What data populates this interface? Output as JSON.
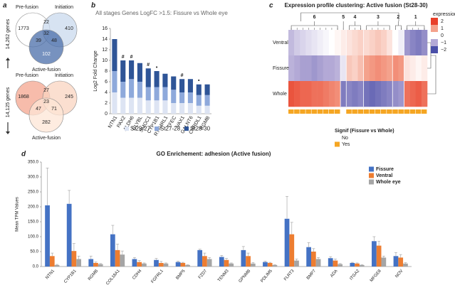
{
  "chart_data": [
    {
      "type": "venn",
      "label": "a",
      "diagrams": [
        {
          "total": "14,262 genes",
          "sets": [
            "Pre-fusion",
            "Initiation",
            "Active-fusion"
          ],
          "colors": [
            "#ffffff",
            "#c9d9ee",
            "#4a6ea9"
          ],
          "counts": [
            1773,
            22,
            410,
            32,
            39,
            48,
            102
          ]
        },
        {
          "total": "14,125 genes",
          "sets": [
            "Pre-fusion",
            "Initiation",
            "Active-fusion"
          ],
          "colors": [
            "#f4a68f",
            "#fad4c0",
            "#fde6d6"
          ],
          "counts": [
            1868,
            27,
            245,
            23,
            47,
            71,
            282
          ]
        }
      ]
    },
    {
      "type": "stacked_bar",
      "label": "b",
      "title": "All stages Genes LogFC >1.5: Fissure vs Whole eye",
      "ylabel": "Log2 Fold Change",
      "categories": [
        "NTN1",
        "PAX2",
        "ALDH6",
        "CLYBL",
        "SMOC1",
        "CYP1B1",
        "RTN4RL1",
        "TFEC",
        "VAX1",
        "GALNT6",
        "CHRDL1",
        "RGMB"
      ],
      "annotations": [
        null,
        "#",
        "#",
        null,
        "#",
        "•",
        null,
        null,
        "#",
        null,
        "•",
        null
      ],
      "series": [
        {
          "name": "St25-27",
          "color": "#dde4f3",
          "values": [
            4,
            3,
            3,
            3,
            2.5,
            2.5,
            2.5,
            2,
            2,
            2,
            1.5,
            1.5
          ]
        },
        {
          "name": "St27-28",
          "color": "#8ea9db",
          "values": [
            4,
            3,
            3.5,
            3,
            2.5,
            2.5,
            2.5,
            2.5,
            2,
            2,
            2,
            2
          ]
        },
        {
          "name": "St28-30",
          "color": "#2f5597",
          "values": [
            6,
            4,
            3.5,
            3.5,
            3.5,
            3,
            2.5,
            2.5,
            2.5,
            2.5,
            2,
            2
          ]
        }
      ],
      "ylim": [
        0,
        16
      ],
      "yticks": [
        0,
        2,
        4,
        6,
        8,
        10,
        12,
        14,
        16
      ],
      "legend": "bottom"
    },
    {
      "type": "heatmap",
      "label": "c",
      "title": "Expression profile clustering: Active fusion (St28-30)",
      "rows": [
        "Ventral",
        "Fissure",
        "Whole"
      ],
      "clusters": [
        {
          "label": "6",
          "columns": 9
        },
        {
          "label": "5",
          "columns": 1
        },
        {
          "label": "4",
          "columns": 3
        },
        {
          "label": "3",
          "columns": 5
        },
        {
          "label": "2",
          "columns": 2
        },
        {
          "label": "1",
          "columns": 4
        }
      ],
      "values": [
        [
          -0.8,
          -0.6,
          -0.5,
          -0.4,
          -0.3,
          -0.2,
          -0.1,
          0,
          0.1,
          0.2,
          0.3,
          0.4,
          0.5,
          0.4,
          0.5,
          0.6,
          0.5,
          0.3,
          0,
          -0.2,
          -1.2,
          -1.4,
          -1.5,
          -1.3
        ],
        [
          -0.9,
          -1,
          -1.1,
          -1.1,
          -1.2,
          -1.1,
          -1,
          -1,
          -0.9,
          -0.3,
          0.6,
          0.5,
          0.7,
          1,
          1.1,
          1.2,
          1.1,
          1,
          1.2,
          1.1,
          0.3,
          0.2,
          0.1,
          0.2
        ],
        [
          1.8,
          1.7,
          1.6,
          1.6,
          1.5,
          1.5,
          1.4,
          1.3,
          1.2,
          -1.5,
          -1.4,
          -1.5,
          -1.4,
          -1.6,
          -1.7,
          -1.6,
          -1.5,
          -1.4,
          -1.3,
          -1.2,
          1.5,
          1.6,
          1.7,
          1.5
        ]
      ],
      "legend_title": "expression",
      "colorscale": [
        {
          "value": 2,
          "label": "2",
          "color": "#e8402a"
        },
        {
          "value": 1,
          "label": "1",
          "color": "#f4a28c"
        },
        {
          "value": 0,
          "label": "0",
          "color": "#ffffff"
        },
        {
          "value": -1,
          "label": "−1",
          "color": "#b3a9d6"
        },
        {
          "value": -2,
          "label": "−2",
          "color": "#4a4fa8"
        }
      ],
      "signif_title": "Signif (Fissure vs Whole)",
      "signif_levels": [
        {
          "label": "No",
          "color": "#ffffff"
        },
        {
          "label": "Yes",
          "color": "#f5a623"
        }
      ],
      "signif": [
        "Yes",
        "Yes",
        "Yes",
        "Yes",
        "Yes",
        "Yes",
        "Yes",
        "Yes",
        "Yes",
        "No",
        "Yes",
        "Yes",
        "Yes",
        "Yes",
        "Yes",
        "Yes",
        "Yes",
        "Yes",
        "Yes",
        "Yes",
        "Yes",
        "Yes",
        "Yes",
        "Yes"
      ]
    },
    {
      "type": "bar",
      "label": "d",
      "title": "GO Enrichement: adhesion (Active fusion)",
      "ylabel": "Mean TPM Values",
      "categories": [
        "NTN1",
        "CYP1B1",
        "RGMB",
        "COL18A1",
        "CDH4",
        "FGFRL1",
        "BMP5",
        "FZD7",
        "TENM3",
        "GPNMB",
        "PDLIM5",
        "FLRT3",
        "BMP7",
        "ADA",
        "ITGA2",
        "MFGE8",
        "NOV"
      ],
      "series": [
        {
          "name": "Fissure",
          "color": "#4472c4",
          "values": [
            205,
            210,
            25,
            108,
            25,
            22,
            15,
            55,
            32,
            55,
            15,
            160,
            65,
            28,
            12,
            85,
            35
          ],
          "errors": [
            125,
            45,
            10,
            30,
            5,
            5,
            3,
            3,
            5,
            12,
            3,
            75,
            15,
            5,
            2,
            15,
            12
          ]
        },
        {
          "name": "Ventral",
          "color": "#ed7d31",
          "values": [
            35,
            52,
            12,
            55,
            15,
            12,
            12,
            35,
            22,
            35,
            12,
            108,
            50,
            20,
            10,
            70,
            30
          ],
          "errors": [
            10,
            25,
            3,
            20,
            5,
            5,
            2,
            10,
            5,
            10,
            2,
            40,
            10,
            5,
            2,
            15,
            10
          ]
        },
        {
          "name": "Whole eye",
          "color": "#a5a5a5",
          "values": [
            5,
            25,
            8,
            40,
            10,
            10,
            5,
            25,
            10,
            10,
            5,
            20,
            25,
            8,
            5,
            30,
            10
          ],
          "errors": [
            2,
            10,
            2,
            12,
            2,
            2,
            1,
            5,
            2,
            3,
            1,
            5,
            5,
            2,
            1,
            5,
            3
          ]
        }
      ],
      "ylim": [
        0,
        350
      ],
      "yticks": [
        {
          "value": 0,
          "label": "0.0"
        },
        {
          "value": 50,
          "label": "50.0"
        },
        {
          "value": 100,
          "label": "100.0"
        },
        {
          "value": 150,
          "label": "150.0"
        },
        {
          "value": 200,
          "label": "200.0"
        },
        {
          "value": 250,
          "label": "250.0"
        },
        {
          "value": 300,
          "label": "300.0"
        },
        {
          "value": 350,
          "label": "350.0"
        }
      ],
      "legend": "upper right"
    }
  ]
}
